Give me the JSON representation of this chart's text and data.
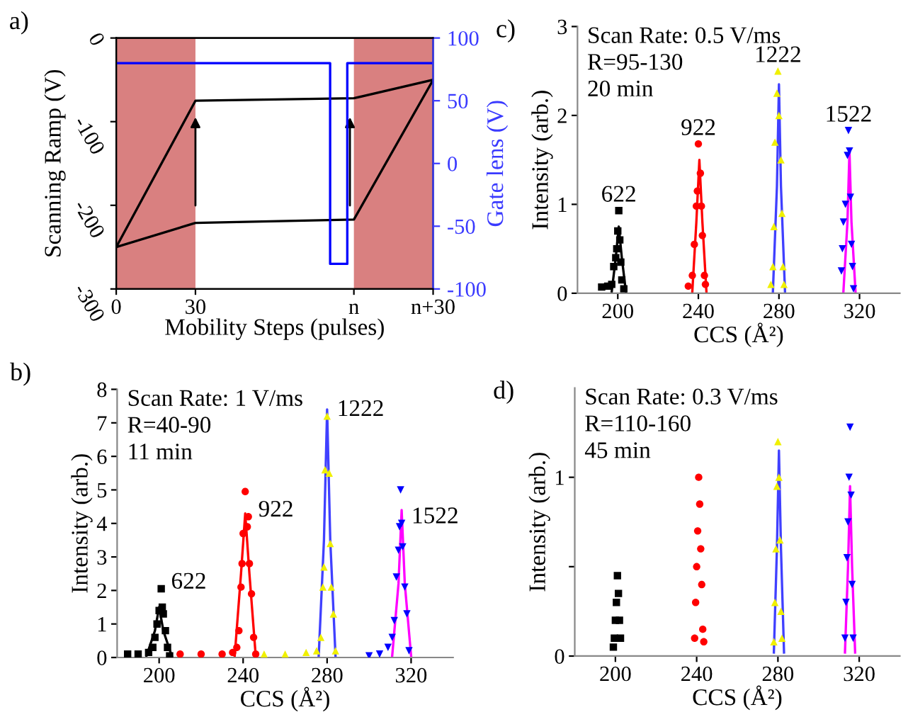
{
  "chart_data": [
    {
      "type": "line",
      "title": "a)",
      "xlabel": "Mobility Steps (pulses)",
      "ylabel": "Scanning Ramp (V)",
      "y2label": "Gate lens (V)",
      "xlim": [
        0,
        120
      ],
      "xticks": [
        0,
        30,
        {
          "value": 90,
          "label": "n"
        },
        {
          "value": 120,
          "label": "n+30"
        }
      ],
      "ylim": [
        -300,
        0
      ],
      "yticks": [
        {
          "value": -300,
          "label": "-300"
        },
        {
          "value": -200,
          "label": "-200"
        },
        {
          "value": -100,
          "label": "-100"
        },
        0
      ],
      "y2lim": [
        -100,
        100
      ],
      "y2ticks": [
        {
          "value": -100,
          "label": "-100"
        },
        {
          "value": -50,
          "label": "-50"
        },
        0,
        50,
        100
      ],
      "bands": [
        {
          "axis": "x",
          "from": 0,
          "to": 30,
          "color": "#d98080"
        },
        {
          "axis": "x",
          "from": 90,
          "to": 120,
          "color": "#d98080"
        }
      ],
      "series": [
        {
          "color": "#000000",
          "x": [
            0,
            30,
            90,
            120
          ],
          "values": [
            -250,
            -75,
            -72,
            -50
          ]
        },
        {
          "color": "#000000",
          "x": [
            0,
            30,
            90,
            120
          ],
          "values": [
            -250,
            -221,
            -217,
            -50
          ]
        },
        {
          "color": "#0000ff",
          "axis": "y2",
          "x": [
            0,
            81,
            81,
            87.5,
            87.5,
            120
          ],
          "values": [
            80,
            80,
            -80,
            -80,
            80,
            80
          ]
        }
      ]
    },
    {
      "type": "scatter",
      "title": "b)",
      "xlabel": "CCS (Å²)",
      "ylabel": "Intensity (arb.)",
      "xlim": [
        180,
        340
      ],
      "xticks": [
        200,
        240,
        280,
        320
      ],
      "ylim": [
        0,
        8
      ],
      "yticks": [
        0,
        1,
        2,
        3,
        4,
        5,
        6,
        7,
        8
      ],
      "annotations": [
        "Scan Rate: 1 V/ms",
        "R=40-90",
        "11 min",
        {
          "text": "622",
          "x": 201,
          "y": 2.05
        },
        {
          "text": "922",
          "x": 242.5,
          "y": 4.2
        },
        {
          "text": "1222",
          "x": 280,
          "y": 7.2
        },
        {
          "text": "1522",
          "x": 315.5,
          "y": 4.0
        }
      ],
      "series": [
        {
          "color": "#000000",
          "marker": "square",
          "x": [
            185,
            190,
            195,
            197,
            198,
            199,
            200,
            201,
            201.5,
            202,
            203,
            204,
            205
          ],
          "values": [
            0.1,
            0.1,
            0.15,
            0.3,
            0.6,
            1.0,
            1.4,
            2.05,
            1.5,
            1.3,
            0.8,
            0.3,
            0.05
          ]
        },
        {
          "color": "#ff0000",
          "marker": "circle",
          "x": [
            210,
            220,
            230,
            235,
            237,
            238,
            239,
            239.5,
            240,
            241,
            242,
            242.5,
            243,
            244,
            245,
            246
          ],
          "values": [
            0.1,
            0.1,
            0.1,
            0.15,
            0.3,
            0.8,
            2.1,
            2.8,
            3.7,
            4.95,
            3.9,
            4.2,
            2.8,
            1.9,
            0.6,
            0.1
          ]
        },
        {
          "color": "#f0f000",
          "marker": "triangle",
          "x": [
            250,
            260,
            270,
            275,
            277,
            278,
            278.5,
            279,
            280,
            281,
            281.5,
            282,
            283,
            284
          ],
          "values": [
            0.1,
            0.1,
            0.15,
            0.2,
            0.6,
            2.1,
            2.7,
            5.6,
            7.2,
            5.5,
            3.4,
            2.1,
            1.3,
            0.2
          ]
        },
        {
          "color": "#0000ff",
          "marker": "triangle_down",
          "x": [
            300,
            305,
            309,
            311,
            312,
            313,
            314,
            314.5,
            315,
            315.5,
            316,
            317,
            318,
            319
          ],
          "values": [
            0.05,
            0.1,
            0.3,
            0.6,
            1.1,
            2.4,
            3.2,
            3.9,
            5.0,
            4.0,
            3.3,
            2.1,
            1.3,
            0.2
          ]
        },
        {
          "type": "line",
          "color": "#000000",
          "x": [
            194,
            198,
            200,
            202,
            206
          ],
          "values": [
            0.05,
            0.8,
            1.5,
            0.8,
            0.05
          ]
        },
        {
          "type": "line",
          "color": "#ff0000",
          "x": [
            236,
            239,
            241,
            243,
            246
          ],
          "values": [
            0.05,
            2.5,
            4.3,
            2.5,
            0.05
          ]
        },
        {
          "type": "line",
          "color": "#4040ff",
          "x": [
            276,
            278.5,
            280,
            281.5,
            284
          ],
          "values": [
            0.05,
            3.5,
            7.4,
            3.5,
            0.05
          ]
        },
        {
          "type": "line",
          "color": "#ff00ff",
          "x": [
            311,
            314,
            315.5,
            317,
            320
          ],
          "values": [
            0.05,
            2.2,
            4.4,
            2.2,
            0.05
          ]
        }
      ]
    },
    {
      "type": "scatter",
      "title": "c)",
      "xlabel": "CCS (Å²)",
      "ylabel": "Intensity (arb.)",
      "xlim": [
        180,
        340
      ],
      "xticks": [
        200,
        240,
        280,
        320
      ],
      "ylim": [
        0,
        3
      ],
      "yticks": [
        0,
        1,
        2,
        3
      ],
      "annotations": [
        "Scan Rate: 0.5 V/ms",
        "R=95-130",
        "20 min",
        {
          "text": "622",
          "x": 200.5,
          "y": 0.93
        },
        {
          "text": "922",
          "x": 240,
          "y": 1.68
        },
        {
          "text": "1222",
          "x": 279.5,
          "y": 2.5
        },
        {
          "text": "1522",
          "x": 314.5,
          "y": 1.83
        }
      ],
      "series": [
        {
          "color": "#000000",
          "marker": "square",
          "x": [
            192,
            195,
            197,
            198,
            199,
            199.5,
            200,
            200.5,
            201,
            201.5,
            202,
            203
          ],
          "values": [
            0.07,
            0.08,
            0.1,
            0.3,
            0.4,
            0.5,
            0.7,
            0.93,
            0.6,
            0.35,
            0.15,
            0.05
          ]
        },
        {
          "color": "#ff0000",
          "marker": "circle",
          "x": [
            235,
            237,
            238,
            239,
            239.5,
            240,
            241,
            241.5,
            242,
            243,
            243.5
          ],
          "values": [
            0.08,
            0.2,
            0.55,
            0.98,
            1.15,
            1.68,
            1.35,
            0.98,
            0.65,
            0.2,
            0.1
          ]
        },
        {
          "color": "#f0f000",
          "marker": "triangle",
          "x": [
            276,
            277,
            277.5,
            278,
            279,
            279.5,
            280,
            281,
            281.5,
            282,
            282.5
          ],
          "values": [
            0.1,
            0.3,
            0.75,
            1.7,
            2.25,
            2.5,
            2.0,
            1.5,
            0.9,
            0.3,
            0.1
          ]
        },
        {
          "color": "#0000ff",
          "marker": "triangle_down",
          "x": [
            311,
            311.5,
            312,
            313,
            314,
            314.5,
            315,
            315.5,
            316,
            316.5,
            317
          ],
          "values": [
            0.25,
            0.5,
            0.8,
            1.0,
            1.55,
            1.83,
            1.6,
            1.08,
            0.55,
            0.3,
            0.05
          ]
        },
        {
          "type": "line",
          "color": "#000000",
          "x": [
            197,
            199,
            200.5,
            202,
            204
          ],
          "values": [
            0.02,
            0.4,
            0.75,
            0.4,
            0.02
          ]
        },
        {
          "type": "line",
          "color": "#ff0000",
          "x": [
            237,
            239,
            240.5,
            242,
            244
          ],
          "values": [
            0.02,
            0.8,
            1.5,
            0.8,
            0.02
          ]
        },
        {
          "type": "line",
          "color": "#4040ff",
          "x": [
            277,
            279,
            280,
            281,
            283
          ],
          "values": [
            0.02,
            1.2,
            2.35,
            1.2,
            0.02
          ]
        },
        {
          "type": "line",
          "color": "#ff00ff",
          "x": [
            312,
            314,
            315,
            316,
            318
          ],
          "values": [
            0.02,
            0.8,
            1.6,
            0.8,
            0.02
          ]
        }
      ]
    },
    {
      "type": "scatter",
      "title": "d)",
      "xlabel": "CCS (Å²)",
      "ylabel": "Intensity (arb.)",
      "xlim": [
        180,
        340
      ],
      "xticks": [
        200,
        240,
        280,
        320
      ],
      "ylim": [
        0,
        1.5
      ],
      "yticks": [
        0,
        {
          "value": 0.5,
          "label": null
        },
        1
      ],
      "annotations": [
        "Scan Rate: 0.3 V/ms",
        "R=110-160",
        "45 min"
      ],
      "series": [
        {
          "color": "#000000",
          "marker": "square",
          "x": [
            199,
            199.5,
            200,
            200.5,
            201,
            201.5,
            202,
            202.5
          ],
          "values": [
            0.05,
            0.1,
            0.2,
            0.3,
            0.45,
            0.35,
            0.2,
            0.1
          ]
        },
        {
          "color": "#ff0000",
          "marker": "circle",
          "x": [
            239,
            239.5,
            240,
            240.5,
            241,
            241.5,
            242,
            242.5,
            243,
            243.5
          ],
          "values": [
            0.1,
            0.3,
            0.5,
            0.7,
            1.0,
            0.85,
            0.6,
            0.4,
            0.15,
            0.08
          ]
        },
        {
          "color": "#f0f000",
          "marker": "triangle",
          "x": [
            278,
            278.5,
            279,
            279.5,
            280,
            280.5,
            281,
            281.5,
            282
          ],
          "values": [
            0.08,
            0.3,
            0.6,
            0.95,
            1.2,
            1.0,
            0.65,
            0.25,
            0.1
          ]
        },
        {
          "color": "#0000ff",
          "marker": "triangle_down",
          "x": [
            313,
            313.5,
            314,
            314.5,
            315,
            315.5,
            316,
            316.5,
            317
          ],
          "values": [
            0.1,
            0.3,
            0.55,
            0.75,
            1.0,
            1.28,
            0.9,
            0.4,
            0.1
          ]
        },
        {
          "type": "line",
          "color": "#4040ff",
          "x": [
            278,
            279.5,
            280.5,
            281.5,
            283
          ],
          "values": [
            0.02,
            0.6,
            1.15,
            0.6,
            0.02
          ]
        },
        {
          "type": "line",
          "color": "#ff00ff",
          "x": [
            313,
            314.5,
            315.5,
            316.5,
            318
          ],
          "values": [
            0.02,
            0.5,
            0.95,
            0.5,
            0.02
          ]
        }
      ]
    }
  ]
}
